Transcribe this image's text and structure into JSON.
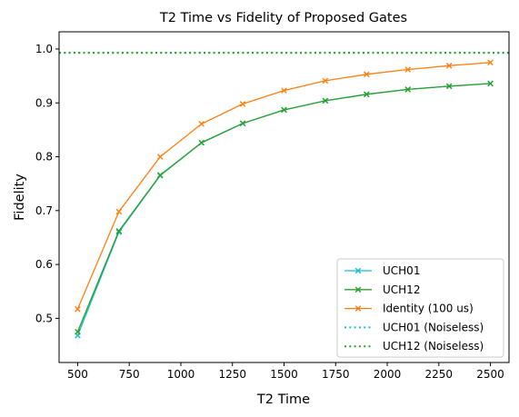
{
  "chart_data": {
    "type": "line",
    "title": "T2 Time vs Fidelity of Proposed Gates",
    "xlabel": "T2 Time",
    "ylabel": "Fidelity",
    "xlim": [
      410,
      2590
    ],
    "ylim": [
      0.418,
      1.032
    ],
    "xticks": [
      500,
      750,
      1000,
      1250,
      1500,
      1750,
      2000,
      2250,
      2500
    ],
    "xtick_labels": [
      "500",
      "750",
      "1000",
      "1250",
      "1500",
      "1750",
      "2000",
      "2250",
      "2500"
    ],
    "yticks": [
      0.5,
      0.6,
      0.7,
      0.8,
      0.9,
      1.0
    ],
    "ytick_labels": [
      "0.5",
      "0.6",
      "0.7",
      "0.8",
      "0.9",
      "1.0"
    ],
    "grid": false,
    "legend_position": "bottom-right",
    "x": [
      500,
      700,
      900,
      1100,
      1300,
      1500,
      1700,
      1900,
      2100,
      2300,
      2500
    ],
    "series": [
      {
        "name": "UCH01",
        "color": "#17becf",
        "style": "solid",
        "marker": "x",
        "values": [
          0.468,
          0.66,
          0.765,
          0.826,
          0.862,
          0.887,
          0.904,
          0.916,
          0.925,
          0.931,
          0.936
        ]
      },
      {
        "name": "UCH12",
        "color": "#2ca02c",
        "style": "solid",
        "marker": "x",
        "values": [
          0.475,
          0.662,
          0.766,
          0.826,
          0.862,
          0.887,
          0.904,
          0.916,
          0.925,
          0.931,
          0.936
        ]
      },
      {
        "name": "Identity (100 us)",
        "color": "#ff7f0e",
        "style": "solid",
        "marker": "x",
        "values": [
          0.517,
          0.698,
          0.8,
          0.861,
          0.898,
          0.923,
          0.941,
          0.953,
          0.962,
          0.969,
          0.975
        ]
      },
      {
        "name": "UCH01 (Noiseless)",
        "color": "#17becf",
        "style": "dotted",
        "marker": "none",
        "hline": 0.993
      },
      {
        "name": "UCH12 (Noiseless)",
        "color": "#2ca02c",
        "style": "dotted",
        "marker": "none",
        "hline": 0.993
      }
    ]
  }
}
